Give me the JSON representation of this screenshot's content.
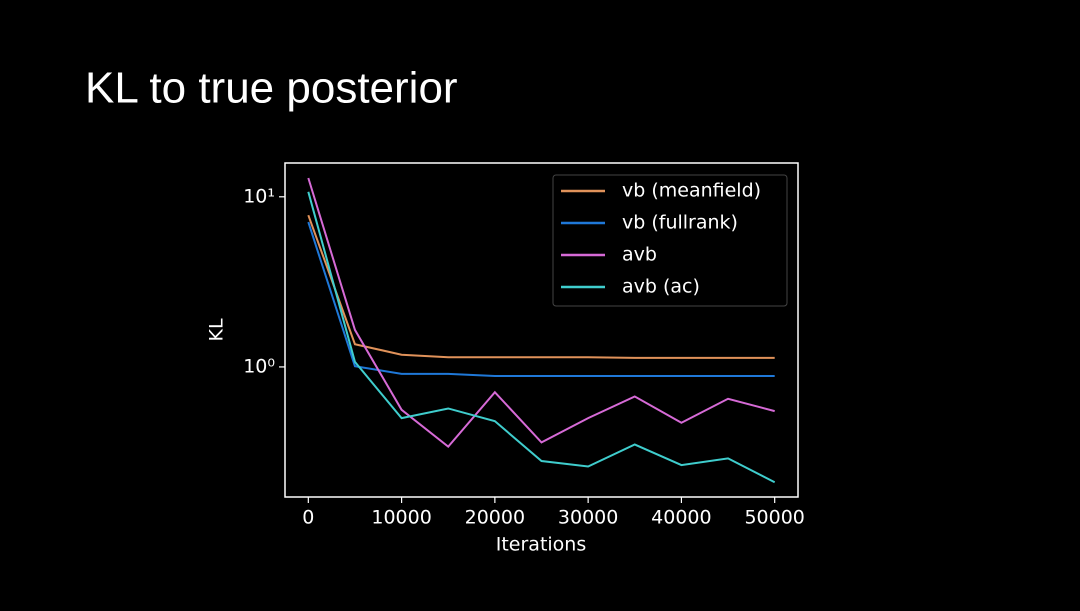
{
  "slide_title": "KL to true posterior",
  "chart_data": {
    "type": "line",
    "xlabel": "Iterations",
    "ylabel": "KL",
    "log_y": true,
    "x": [
      0,
      5000,
      10000,
      15000,
      20000,
      25000,
      30000,
      35000,
      40000,
      45000,
      50000
    ],
    "xlim": [
      -2500,
      52500
    ],
    "xticks": [
      0,
      10000,
      20000,
      30000,
      40000,
      50000
    ],
    "ylim": [
      0.172,
      15.8
    ],
    "yticks": [
      {
        "value": 10,
        "label": "10¹"
      },
      {
        "value": 1,
        "label": "10⁰"
      }
    ],
    "legend": "upper right",
    "series": [
      {
        "name": "vb (meanfield)",
        "color": "#e0925a",
        "values": [
          7.8,
          1.36,
          1.18,
          1.14,
          1.14,
          1.14,
          1.14,
          1.13,
          1.13,
          1.13,
          1.13
        ]
      },
      {
        "name": "vb (fullrank)",
        "color": "#1f78d8",
        "values": [
          7.1,
          1.01,
          0.91,
          0.91,
          0.885,
          0.885,
          0.885,
          0.885,
          0.885,
          0.885,
          0.885
        ]
      },
      {
        "name": "avb",
        "color": "#d66ad6",
        "values": [
          12.9,
          1.65,
          0.56,
          0.34,
          0.71,
          0.36,
          0.5,
          0.67,
          0.47,
          0.65,
          0.55
        ]
      },
      {
        "name": "avb (ac)",
        "color": "#3fcdcd",
        "values": [
          10.7,
          1.07,
          0.5,
          0.57,
          0.48,
          0.28,
          0.26,
          0.35,
          0.265,
          0.29,
          0.21
        ]
      }
    ]
  }
}
